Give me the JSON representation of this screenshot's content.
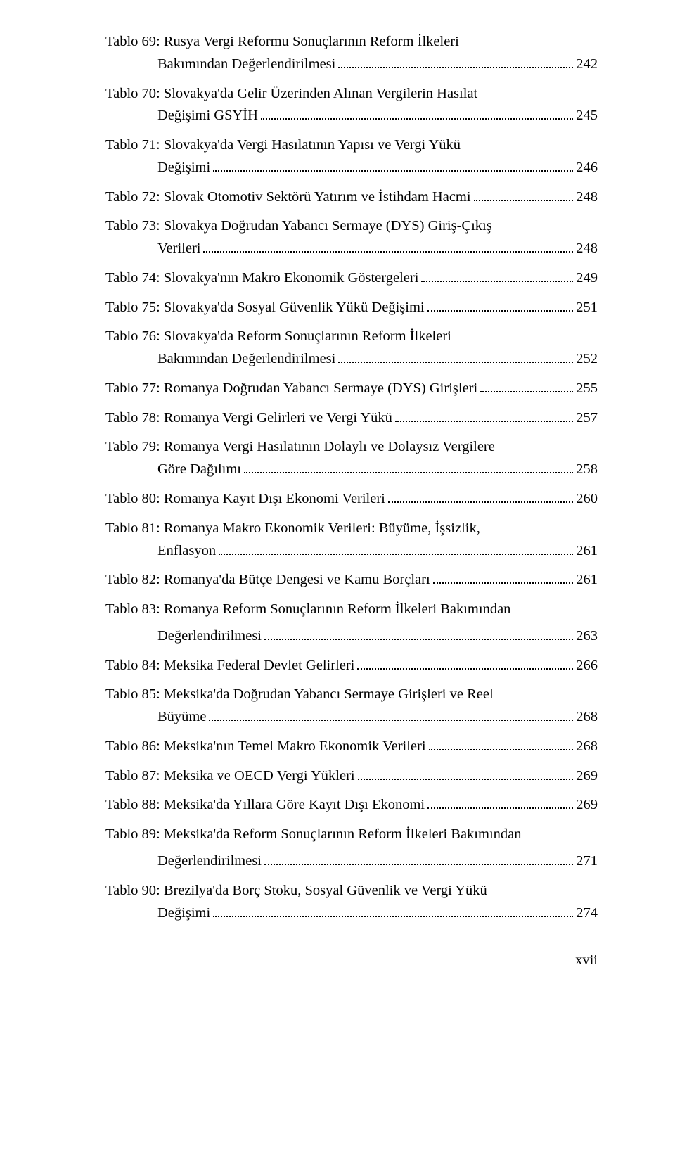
{
  "toc": [
    {
      "lines": [
        "Tablo 69: Rusya Vergi Reformu Sonuçlarının Reform İlkeleri",
        "Bakımından Değerlendirilmesi"
      ],
      "page": "242"
    },
    {
      "lines": [
        "Tablo 70: Slovakya'da Gelir Üzerinden Alınan Vergilerin Hasılat",
        "Değişimi GSYİH"
      ],
      "page": "245"
    },
    {
      "lines": [
        "Tablo 71: Slovakya'da Vergi Hasılatının Yapısı ve Vergi Yükü",
        "Değişimi"
      ],
      "page": "246"
    },
    {
      "lines": [
        "Tablo 72: Slovak Otomotiv Sektörü Yatırım ve İstihdam Hacmi"
      ],
      "page": "248"
    },
    {
      "lines": [
        "Tablo 73: Slovakya Doğrudan Yabancı Sermaye (DYS) Giriş-Çıkış",
        "Verileri"
      ],
      "page": "248"
    },
    {
      "lines": [
        "Tablo 74: Slovakya'nın Makro Ekonomik Göstergeleri"
      ],
      "page": "249"
    },
    {
      "lines": [
        "Tablo 75: Slovakya'da Sosyal Güvenlik Yükü Değişimi"
      ],
      "page": "251"
    },
    {
      "lines": [
        "Tablo 76: Slovakya'da Reform Sonuçlarının Reform İlkeleri",
        "Bakımından Değerlendirilmesi"
      ],
      "page": "252"
    },
    {
      "lines": [
        "Tablo 77: Romanya Doğrudan Yabancı Sermaye (DYS) Girişleri"
      ],
      "page": "255"
    },
    {
      "lines": [
        "Tablo 78: Romanya Vergi Gelirleri ve Vergi Yükü"
      ],
      "page": "257"
    },
    {
      "lines": [
        "Tablo 79: Romanya Vergi Hasılatının Dolaylı ve Dolaysız Vergilere",
        "Göre Dağılımı"
      ],
      "page": "258"
    },
    {
      "lines": [
        "Tablo 80: Romanya Kayıt Dışı Ekonomi Verileri"
      ],
      "page": "260"
    },
    {
      "lines": [
        "Tablo 81: Romanya Makro Ekonomik Verileri: Büyüme, İşsizlik,",
        "Enflasyon"
      ],
      "page": "261"
    },
    {
      "lines": [
        "Tablo 82: Romanya'da Bütçe Dengesi ve Kamu Borçları"
      ],
      "page": "261"
    },
    {
      "lines": [
        "Tablo 83: Romanya Reform Sonuçlarının Reform İlkeleri Bakımından"
      ],
      "extra": "Değerlendirilmesi",
      "page": "263"
    },
    {
      "lines": [
        "Tablo 84: Meksika Federal Devlet Gelirleri"
      ],
      "page": "266"
    },
    {
      "lines": [
        "Tablo 85: Meksika'da Doğrudan Yabancı Sermaye Girişleri ve Reel",
        "Büyüme"
      ],
      "page": "268"
    },
    {
      "lines": [
        "Tablo 86: Meksika'nın Temel Makro Ekonomik Verileri"
      ],
      "page": "268"
    },
    {
      "lines": [
        "Tablo 87: Meksika ve OECD Vergi Yükleri"
      ],
      "page": "269"
    },
    {
      "lines": [
        "Tablo 88: Meksika'da Yıllara Göre Kayıt Dışı Ekonomi"
      ],
      "page": "269"
    },
    {
      "lines": [
        "Tablo 89: Meksika'da Reform Sonuçlarının Reform İlkeleri Bakımından"
      ],
      "extra": "Değerlendirilmesi",
      "page": "271"
    },
    {
      "lines": [
        "Tablo 90: Brezilya'da Borç Stoku, Sosyal Güvenlik ve Vergi Yükü",
        "Değişimi"
      ],
      "page": "274"
    }
  ],
  "footer": {
    "page_label": "xvii"
  }
}
